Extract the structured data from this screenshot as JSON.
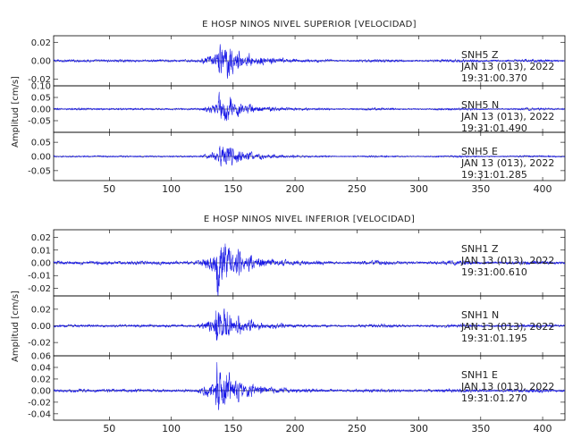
{
  "chart_data": [
    {
      "type": "line",
      "title": "E HOSP NINOS NIVEL SUPERIOR [VELOCIDAD]",
      "ylabel": "Amplitud [cm/s]",
      "xlabel": "",
      "xlim": [
        5,
        418
      ],
      "x_ticks": [
        "50",
        "100",
        "150",
        "200",
        "250",
        "300",
        "350",
        "400"
      ],
      "grid": false,
      "series": [
        {
          "station": "SNH5",
          "component": "Z",
          "date": "JAN 13 (013), 2022",
          "time": "19:31:00.370",
          "ylim": [
            -0.027,
            0.027
          ],
          "y_ticks": [
            "0.02",
            "0.00",
            "-0.02"
          ],
          "approx_peak_amplitude": 0.026,
          "approx_s_arrival": 140
        },
        {
          "station": "SNH5",
          "component": "N",
          "date": "JAN 13 (013), 2022",
          "time": "19:31:01.490",
          "ylim": [
            -0.1,
            0.1
          ],
          "y_ticks": [
            "0.10",
            "0.05",
            "0.00",
            "-0.05"
          ],
          "approx_peak_amplitude": 0.08,
          "approx_s_arrival": 140
        },
        {
          "station": "SNH5",
          "component": "E",
          "date": "JAN 13 (013), 2022",
          "time": "19:31:01.285",
          "ylim": [
            -0.085,
            0.085
          ],
          "y_ticks": [
            "0.05",
            "0.00",
            "-0.05"
          ],
          "approx_peak_amplitude": 0.055,
          "approx_s_arrival": 140
        }
      ]
    },
    {
      "type": "line",
      "title": "E HOSP NINOS NIVEL INFERIOR [VELOCIDAD]",
      "ylabel": "Amplitud [cm/s]",
      "xlabel": "",
      "xlim": [
        5,
        418
      ],
      "x_ticks": [
        "50",
        "100",
        "150",
        "200",
        "250",
        "300",
        "350",
        "400"
      ],
      "grid": false,
      "series": [
        {
          "station": "SNH1",
          "component": "Z",
          "date": "JAN 13 (013), 2022",
          "time": "19:31:00.610",
          "ylim": [
            -0.026,
            0.026
          ],
          "y_ticks": [
            "0.02",
            "0.01",
            "0.00",
            "-0.01",
            "-0.02"
          ],
          "approx_peak_amplitude": 0.026,
          "approx_s_arrival": 138
        },
        {
          "station": "SNH1",
          "component": "N",
          "date": "JAN 13 (013), 2022",
          "time": "19:31:01.195",
          "ylim": [
            -0.036,
            0.036
          ],
          "y_ticks": [
            "0.02",
            "0.00",
            "-0.02"
          ],
          "approx_peak_amplitude": 0.03,
          "approx_s_arrival": 138
        },
        {
          "station": "SNH1",
          "component": "E",
          "date": "JAN 13 (013), 2022",
          "time": "19:31:01.270",
          "ylim": [
            -0.051,
            0.06
          ],
          "y_ticks": [
            "0.06",
            "0.04",
            "0.02",
            "0.00",
            "-0.02",
            "-0.04"
          ],
          "approx_peak_amplitude": 0.05,
          "approx_s_arrival": 138
        }
      ]
    }
  ],
  "colors": {
    "trace": "#1414e6",
    "frame": "#000000",
    "text": "#222222"
  }
}
